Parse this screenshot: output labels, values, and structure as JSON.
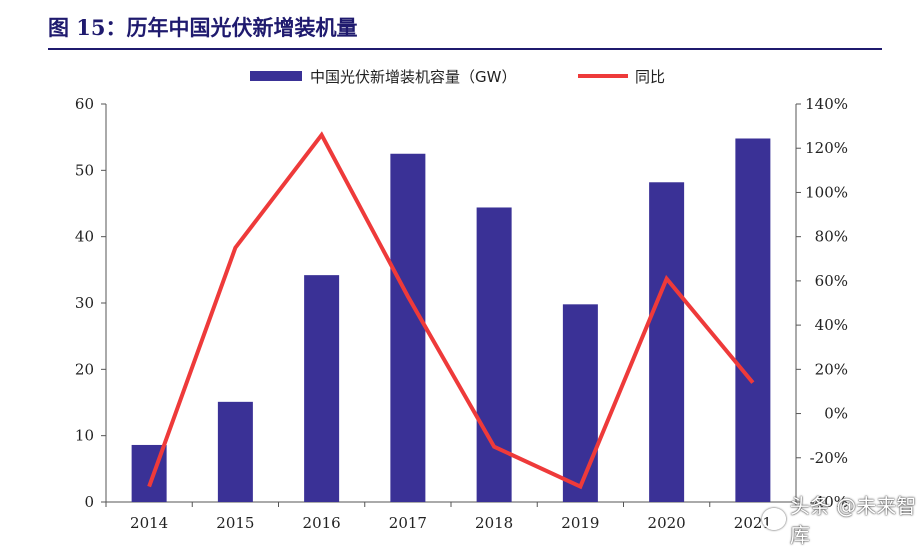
{
  "title": "图 15：历年中国光伏新增装机量",
  "watermark": "头条 @未来智库",
  "colors": {
    "bar": "#3a3196",
    "line": "#ee3a3a",
    "title": "#1f1a6e",
    "axis": "#555555"
  },
  "chart_data": {
    "type": "bar+line",
    "categories": [
      "2014",
      "2015",
      "2016",
      "2017",
      "2018",
      "2019",
      "2020",
      "2021"
    ],
    "series": [
      {
        "name": "中国光伏新增装机容量（GW）",
        "type": "bar",
        "axis": "left",
        "values": [
          8.6,
          15.1,
          34.2,
          52.5,
          44.4,
          29.8,
          48.2,
          54.8
        ]
      },
      {
        "name": "同比",
        "type": "line",
        "axis": "right",
        "values": [
          -33,
          75,
          126,
          53,
          -15,
          -33,
          61,
          14
        ]
      }
    ],
    "left_axis": {
      "min": 0,
      "max": 60,
      "ticks": [
        "0",
        "10",
        "20",
        "30",
        "40",
        "50",
        "60"
      ]
    },
    "right_axis": {
      "min": -40,
      "max": 140,
      "ticks": [
        "-40%",
        "-20%",
        "0%",
        "20%",
        "40%",
        "60%",
        "80%",
        "100%",
        "120%",
        "140%"
      ]
    },
    "legend_position": "top-center",
    "grid": false
  }
}
